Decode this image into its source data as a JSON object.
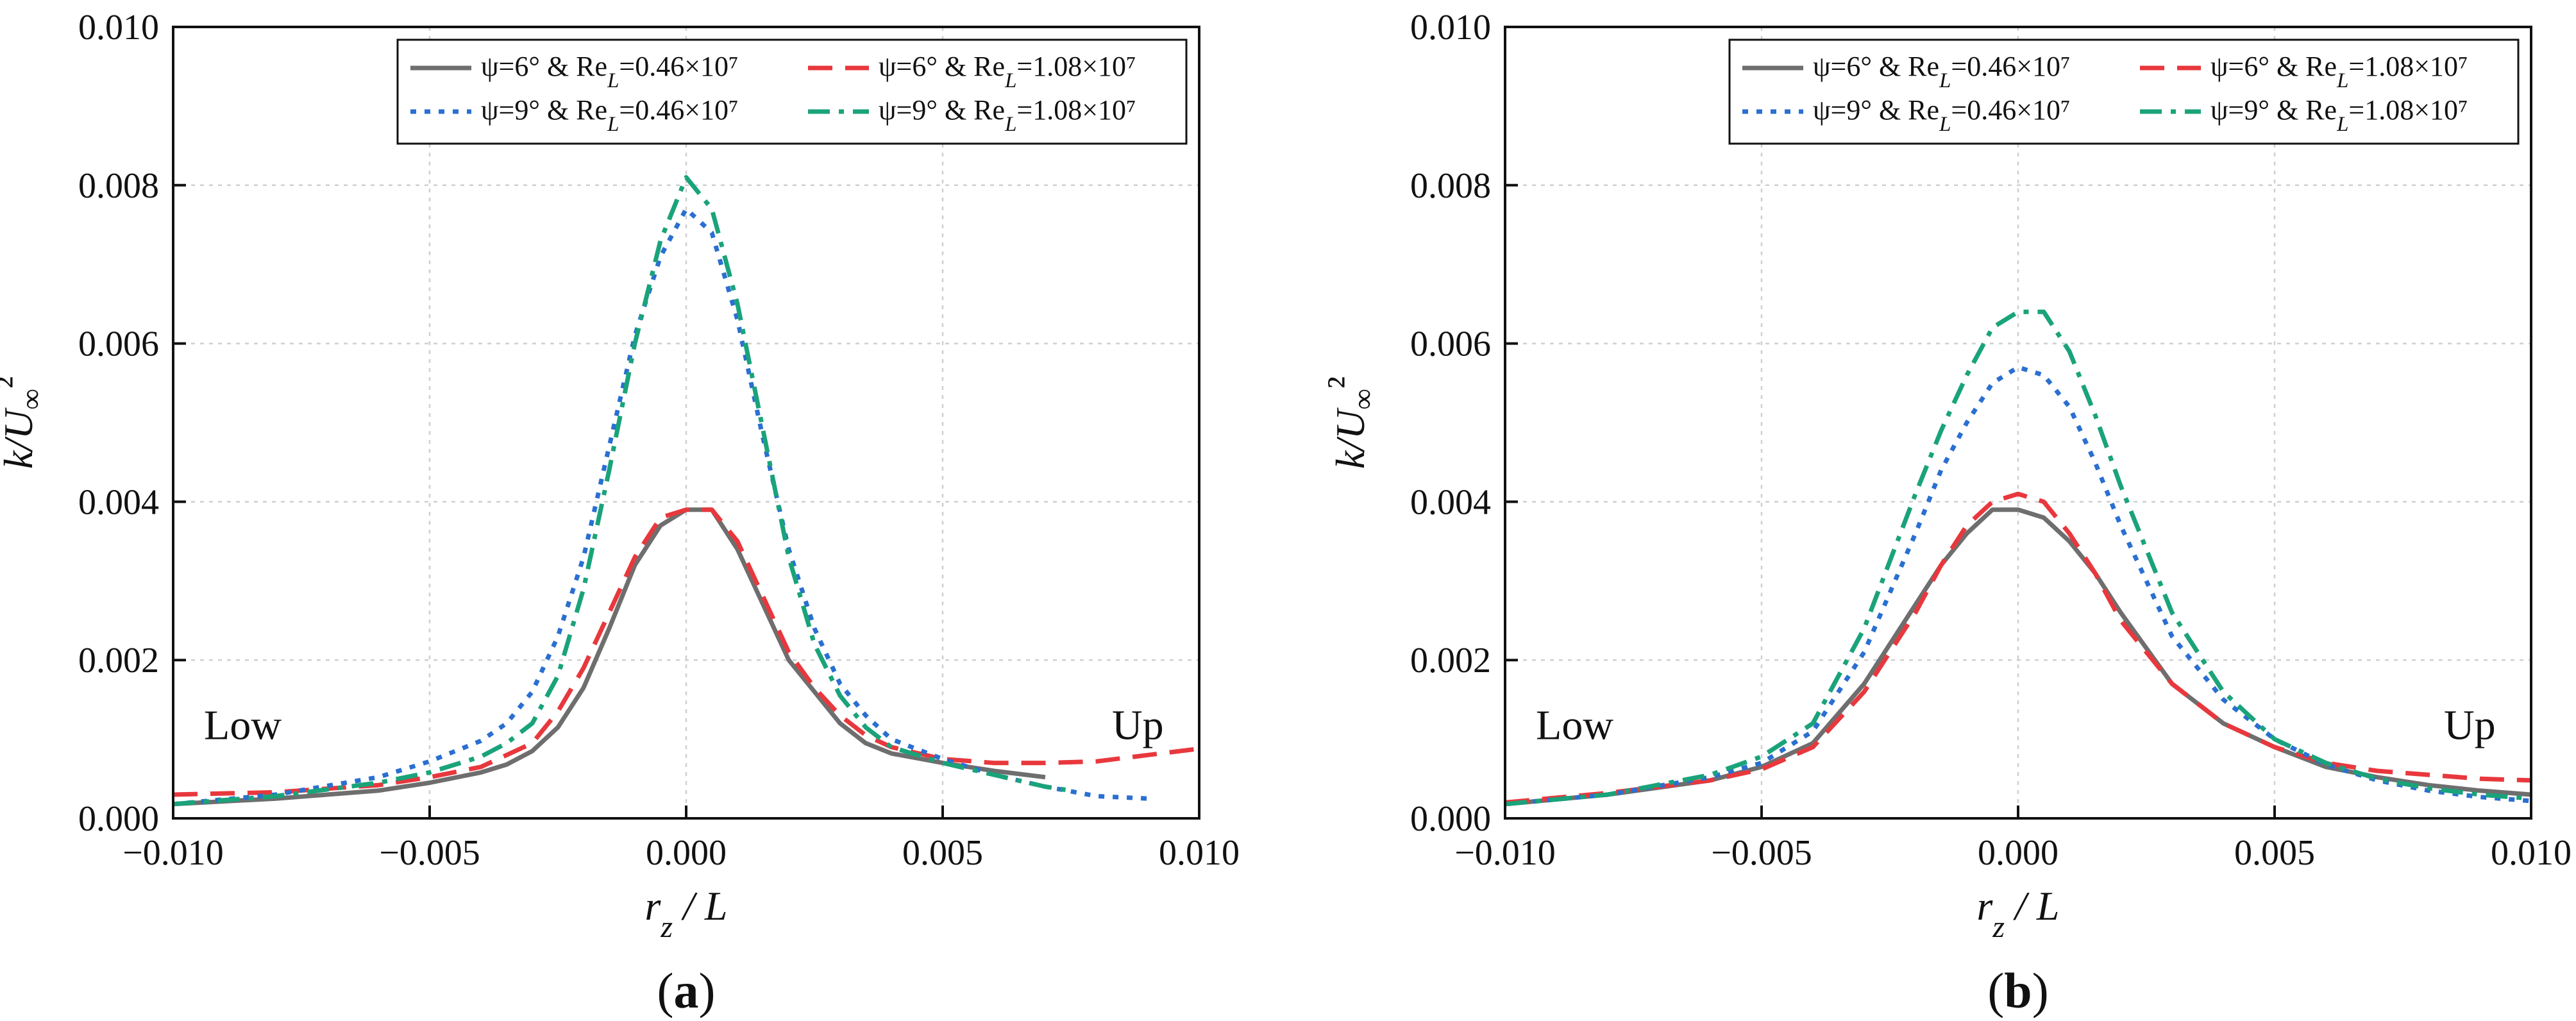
{
  "chart_data": [
    {
      "type": "line",
      "panel_label": "(a)",
      "xlabel": "r_z / L",
      "ylabel": "k/U∞²",
      "xlim": [
        -0.01,
        0.01
      ],
      "ylim": [
        0,
        0.01
      ],
      "xticks": [
        -0.01,
        -0.005,
        0,
        0.005,
        0.01
      ],
      "yticks": [
        0,
        0.002,
        0.004,
        0.006,
        0.008,
        0.01
      ],
      "xtick_labels": [
        "−0.010",
        "−0.005",
        "0.000",
        "0.005",
        "0.010"
      ],
      "ytick_labels": [
        "0.000",
        "0.002",
        "0.004",
        "0.006",
        "0.008",
        "0.010"
      ],
      "grid": true,
      "legend_position": "top-right",
      "annotations": [
        {
          "text": "Low",
          "x": -0.0094,
          "y": 0.00118
        },
        {
          "text": "Up",
          "x": 0.0083,
          "y": 0.00118
        }
      ],
      "series": [
        {
          "name": "ψ=6° & Re_L=0.46×10^7",
          "color": "#6e6e6e",
          "dash": "solid",
          "x": [
            -0.01,
            -0.008,
            -0.006,
            -0.005,
            -0.004,
            -0.0035,
            -0.003,
            -0.0025,
            -0.002,
            -0.0015,
            -0.001,
            -0.0005,
            0.0,
            0.0005,
            0.001,
            0.0015,
            0.002,
            0.0025,
            0.003,
            0.0035,
            0.004,
            0.005,
            0.006,
            0.007
          ],
          "y": [
            0.00018,
            0.00025,
            0.00035,
            0.00045,
            0.00058,
            0.00068,
            0.00085,
            0.00115,
            0.00165,
            0.0024,
            0.0032,
            0.0037,
            0.0039,
            0.0039,
            0.0034,
            0.0027,
            0.002,
            0.0016,
            0.0012,
            0.00095,
            0.00082,
            0.0007,
            0.0006,
            0.00052
          ]
        },
        {
          "name": "ψ=6° & Re_L=1.08×10^7",
          "color": "#e8383d",
          "dash": "dashed",
          "x": [
            -0.01,
            -0.008,
            -0.006,
            -0.005,
            -0.004,
            -0.003,
            -0.0025,
            -0.002,
            -0.0015,
            -0.001,
            -0.0005,
            0.0,
            0.0005,
            0.001,
            0.0015,
            0.002,
            0.0025,
            0.003,
            0.0035,
            0.004,
            0.005,
            0.006,
            0.007,
            0.008,
            0.009,
            0.01
          ],
          "y": [
            0.0003,
            0.00033,
            0.00042,
            0.00052,
            0.00065,
            0.00095,
            0.00135,
            0.0019,
            0.0026,
            0.0033,
            0.0038,
            0.0039,
            0.0039,
            0.0035,
            0.0028,
            0.0021,
            0.00165,
            0.0013,
            0.00105,
            0.0009,
            0.00075,
            0.0007,
            0.0007,
            0.00072,
            0.0008,
            0.00088
          ]
        },
        {
          "name": "ψ=9° & Re_L=0.46×10^7",
          "color": "#2a6fd1",
          "dash": "dotted",
          "x": [
            -0.01,
            -0.008,
            -0.006,
            -0.005,
            -0.004,
            -0.0035,
            -0.003,
            -0.0025,
            -0.002,
            -0.0015,
            -0.001,
            -0.0005,
            0.0,
            0.0005,
            0.001,
            0.0015,
            0.002,
            0.0025,
            0.003,
            0.0035,
            0.004,
            0.005,
            0.006,
            0.007,
            0.008,
            0.009
          ],
          "y": [
            0.00018,
            0.0003,
            0.00052,
            0.00072,
            0.00098,
            0.0012,
            0.0016,
            0.0023,
            0.0033,
            0.0047,
            0.0061,
            0.0071,
            0.0077,
            0.0074,
            0.0063,
            0.0048,
            0.0034,
            0.0024,
            0.0017,
            0.0013,
            0.001,
            0.00075,
            0.00055,
            0.0004,
            0.00028,
            0.00025
          ]
        },
        {
          "name": "ψ=9° & Re_L=1.08×10^7",
          "color": "#1aa37a",
          "dash": "dashdot",
          "x": [
            -0.01,
            -0.008,
            -0.006,
            -0.005,
            -0.004,
            -0.0035,
            -0.003,
            -0.0025,
            -0.002,
            -0.0015,
            -0.001,
            -0.0005,
            0.0,
            0.0005,
            0.001,
            0.0015,
            0.002,
            0.0025,
            0.003,
            0.0035,
            0.004,
            0.005,
            0.006,
            0.007,
            0.0075
          ],
          "y": [
            0.00018,
            0.00028,
            0.00045,
            0.00058,
            0.00078,
            0.00095,
            0.0012,
            0.0018,
            0.0029,
            0.0044,
            0.006,
            0.0073,
            0.0081,
            0.0077,
            0.0065,
            0.0049,
            0.0033,
            0.0022,
            0.00155,
            0.00115,
            0.0009,
            0.0007,
            0.00055,
            0.0004,
            0.00035
          ]
        }
      ]
    },
    {
      "type": "line",
      "panel_label": "(b)",
      "xlabel": "r_z / L",
      "ylabel": "k/U∞²",
      "xlim": [
        -0.01,
        0.01
      ],
      "ylim": [
        0,
        0.01
      ],
      "xticks": [
        -0.01,
        -0.005,
        0,
        0.005,
        0.01
      ],
      "yticks": [
        0,
        0.002,
        0.004,
        0.006,
        0.008,
        0.01
      ],
      "xtick_labels": [
        "−0.010",
        "−0.005",
        "0.000",
        "0.005",
        "0.010"
      ],
      "ytick_labels": [
        "0.000",
        "0.002",
        "0.004",
        "0.006",
        "0.008",
        "0.010"
      ],
      "grid": true,
      "legend_position": "top-right",
      "annotations": [
        {
          "text": "Low",
          "x": -0.0094,
          "y": 0.00118
        },
        {
          "text": "Up",
          "x": 0.0083,
          "y": 0.00118
        }
      ],
      "series": [
        {
          "name": "ψ=6° & Re_L=0.46×10^7",
          "color": "#6e6e6e",
          "dash": "solid",
          "x": [
            -0.01,
            -0.008,
            -0.006,
            -0.005,
            -0.004,
            -0.003,
            -0.002,
            -0.0015,
            -0.001,
            -0.0005,
            0.0,
            0.0005,
            0.001,
            0.0015,
            0.002,
            0.003,
            0.004,
            0.005,
            0.006,
            0.007,
            0.008,
            0.009,
            0.01
          ],
          "y": [
            0.00018,
            0.0003,
            0.00048,
            0.00065,
            0.00095,
            0.0017,
            0.0027,
            0.0032,
            0.0036,
            0.0039,
            0.0039,
            0.0038,
            0.0035,
            0.0031,
            0.0026,
            0.0017,
            0.0012,
            0.0009,
            0.00065,
            0.00052,
            0.00042,
            0.00035,
            0.0003
          ]
        },
        {
          "name": "ψ=6° & Re_L=1.08×10^7",
          "color": "#e8383d",
          "dash": "dashed",
          "x": [
            -0.01,
            -0.008,
            -0.006,
            -0.005,
            -0.004,
            -0.003,
            -0.002,
            -0.0015,
            -0.001,
            -0.0005,
            0.0,
            0.0005,
            0.001,
            0.0015,
            0.002,
            0.003,
            0.004,
            0.005,
            0.006,
            0.007,
            0.008,
            0.009,
            0.01
          ],
          "y": [
            0.0002,
            0.00032,
            0.00048,
            0.00062,
            0.0009,
            0.0016,
            0.0026,
            0.0032,
            0.0037,
            0.004,
            0.0041,
            0.004,
            0.0036,
            0.0031,
            0.0025,
            0.0017,
            0.0012,
            0.0009,
            0.0007,
            0.0006,
            0.00055,
            0.0005,
            0.00048
          ]
        },
        {
          "name": "ψ=9° & Re_L=0.46×10^7",
          "color": "#2a6fd1",
          "dash": "dotted",
          "x": [
            -0.01,
            -0.008,
            -0.006,
            -0.005,
            -0.004,
            -0.003,
            -0.002,
            -0.0015,
            -0.001,
            -0.0005,
            0.0,
            0.0005,
            0.001,
            0.0015,
            0.002,
            0.003,
            0.004,
            0.005,
            0.006,
            0.007,
            0.008,
            0.009,
            0.01
          ],
          "y": [
            0.00018,
            0.0003,
            0.00052,
            0.0007,
            0.0011,
            0.0021,
            0.0036,
            0.0044,
            0.005,
            0.0055,
            0.0057,
            0.0056,
            0.0052,
            0.0045,
            0.0037,
            0.0023,
            0.0015,
            0.001,
            0.00068,
            0.00048,
            0.00035,
            0.00027,
            0.00022
          ]
        },
        {
          "name": "ψ=9° & Re_L=1.08×10^7",
          "color": "#1aa37a",
          "dash": "dashdot",
          "x": [
            -0.01,
            -0.008,
            -0.006,
            -0.005,
            -0.004,
            -0.003,
            -0.002,
            -0.0015,
            -0.001,
            -0.0005,
            0.0,
            0.0005,
            0.001,
            0.0015,
            0.002,
            0.003,
            0.004,
            0.005,
            0.006,
            0.007,
            0.008,
            0.009,
            0.01
          ],
          "y": [
            0.00018,
            0.0003,
            0.00055,
            0.00078,
            0.0012,
            0.0024,
            0.0041,
            0.0049,
            0.0056,
            0.0062,
            0.0064,
            0.0064,
            0.0059,
            0.0051,
            0.0042,
            0.0026,
            0.0016,
            0.001,
            0.0007,
            0.0005,
            0.00038,
            0.0003,
            0.00025
          ]
        }
      ]
    }
  ]
}
